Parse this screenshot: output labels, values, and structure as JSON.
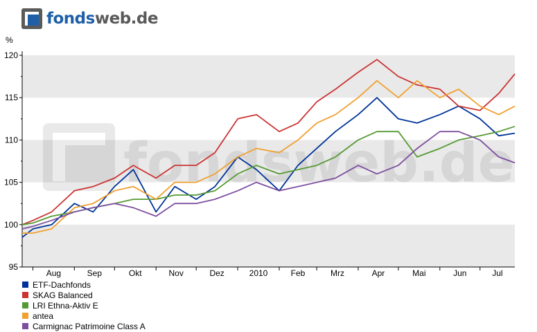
{
  "brand": {
    "logo_text_a": "fonds",
    "logo_text_b": "web.de",
    "watermark": "fondsweb.de",
    "accent": "#1f5fa8"
  },
  "chart_data": {
    "type": "line",
    "ylabel": "%",
    "ylim": [
      95,
      120
    ],
    "yticks": [
      95,
      100,
      105,
      110,
      115,
      120
    ],
    "xlim": [
      "2009-07-24",
      "2010-07-27"
    ],
    "months": [
      {
        "label": "Aug",
        "date": "2009-08-01"
      },
      {
        "label": "Sep",
        "date": "2009-09-01"
      },
      {
        "label": "Okt",
        "date": "2009-10-01"
      },
      {
        "label": "Nov",
        "date": "2009-11-01"
      },
      {
        "label": "Dez",
        "date": "2009-12-01"
      },
      {
        "label": "2010",
        "date": "2010-01-01"
      },
      {
        "label": "Feb",
        "date": "2010-02-01"
      },
      {
        "label": "Mrz",
        "date": "2010-03-01"
      },
      {
        "label": "Apr",
        "date": "2010-04-01"
      },
      {
        "label": "Mai",
        "date": "2010-05-01"
      },
      {
        "label": "Jun",
        "date": "2010-06-01"
      },
      {
        "label": "Jul",
        "date": "2010-07-01"
      }
    ],
    "x": [
      "2009-07-24",
      "2009-08-01",
      "2009-08-15",
      "2009-09-01",
      "2009-09-15",
      "2009-10-01",
      "2009-10-15",
      "2009-11-01",
      "2009-11-15",
      "2009-12-01",
      "2009-12-15",
      "2010-01-01",
      "2010-01-15",
      "2010-02-01",
      "2010-02-15",
      "2010-03-01",
      "2010-03-15",
      "2010-04-01",
      "2010-04-15",
      "2010-05-01",
      "2010-05-15",
      "2010-06-01",
      "2010-06-15",
      "2010-07-01",
      "2010-07-15",
      "2010-07-27"
    ],
    "grid": true,
    "legend_position": "bottom-left",
    "series": [
      {
        "name": "ETF-Dachfonds",
        "color": "#003399",
        "values": [
          98.5,
          99.5,
          100,
          102.5,
          101.5,
          104.5,
          106.5,
          101.5,
          104.5,
          103,
          104.5,
          108,
          106.5,
          104,
          107,
          109,
          111,
          113,
          115,
          112.5,
          112,
          113,
          114,
          112.5,
          110.5,
          110.8
        ]
      },
      {
        "name": "SKAG Balanced",
        "color": "#cc3333",
        "values": [
          100,
          100.5,
          101.5,
          104,
          104.5,
          105.5,
          107,
          105.5,
          107,
          107,
          108.5,
          112.5,
          113,
          111,
          112,
          114.5,
          116,
          118,
          119.5,
          117.5,
          116.5,
          116,
          114,
          113.5,
          115.5,
          117.8
        ]
      },
      {
        "name": "LRI Ethna-Aktiv E",
        "color": "#559933",
        "values": [
          100,
          100.2,
          101,
          101.5,
          102,
          102.5,
          103,
          103,
          103.5,
          103.5,
          104,
          106,
          107,
          106,
          106.5,
          107,
          108,
          110,
          111,
          111,
          108,
          109,
          110,
          110.5,
          111,
          111.6
        ]
      },
      {
        "name": "antea",
        "color": "#f0a030",
        "values": [
          99,
          99,
          99.5,
          102,
          102.5,
          104,
          104.5,
          103,
          105,
          105,
          106,
          108,
          109,
          108.5,
          110,
          112,
          113,
          115,
          117,
          115,
          117,
          115,
          116,
          114,
          113,
          114
        ]
      },
      {
        "name": "Carmignac Patrimoine Class A",
        "color": "#7d4e9f",
        "values": [
          99.5,
          99.8,
          100.5,
          101.5,
          102,
          102.5,
          102,
          101,
          102.5,
          102.5,
          103,
          104,
          105,
          104,
          104.5,
          105,
          105.5,
          107,
          106,
          107,
          109,
          111,
          111,
          110,
          108,
          107.3
        ]
      }
    ]
  }
}
